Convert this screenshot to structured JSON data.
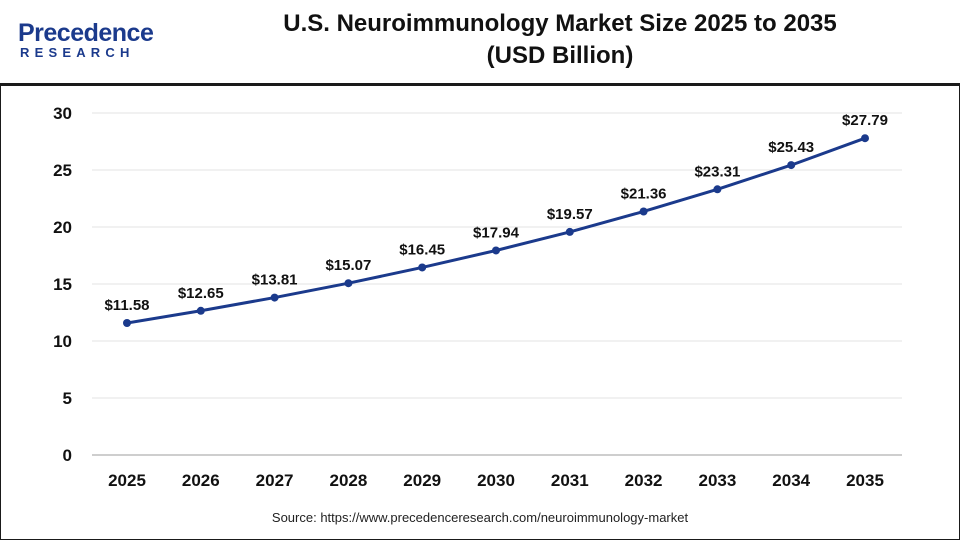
{
  "brand": {
    "name": "Precedence",
    "sub": "RESEARCH"
  },
  "title_line1": "U.S. Neuroimmunology Market Size 2025 to 2035",
  "title_line2": "(USD Billion)",
  "source": "Source: https://www.precedenceresearch.com/neuroimmunology-market",
  "colors": {
    "line": "#1b3a8c",
    "brand": "#1b3a8c",
    "grid": "#e3e3e3",
    "frame": "#1a1a1a"
  },
  "chart_data": {
    "type": "line",
    "title": "U.S. Neuroimmunology Market Size 2025 to 2035 (USD Billion)",
    "xlabel": "",
    "ylabel": "",
    "categories": [
      "2025",
      "2026",
      "2027",
      "2028",
      "2029",
      "2030",
      "2031",
      "2032",
      "2033",
      "2034",
      "2035"
    ],
    "series": [
      {
        "values": [
          11.58,
          12.65,
          13.81,
          15.07,
          16.45,
          17.94,
          19.57,
          21.36,
          23.31,
          25.43,
          27.79
        ],
        "labels": [
          "$11.58",
          "$12.65",
          "$13.81",
          "$15.07",
          "$16.45",
          "$17.94",
          "$19.57",
          "$21.36",
          "$23.31",
          "$25.43",
          "$27.79"
        ]
      }
    ],
    "ylim": [
      0,
      30
    ],
    "yticks": [
      "0",
      "5",
      "10",
      "15",
      "20",
      "25",
      "30"
    ],
    "grid": true,
    "legend": "none"
  }
}
